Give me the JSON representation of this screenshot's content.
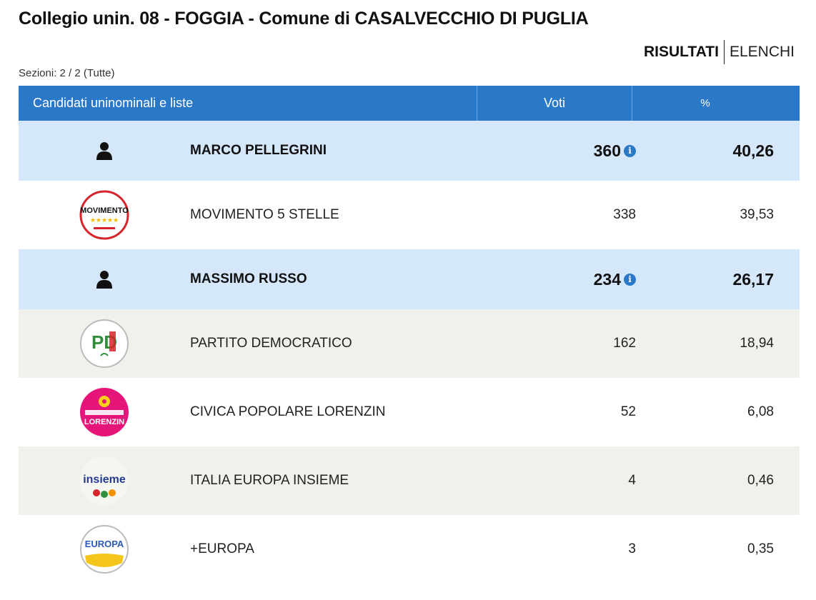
{
  "header": {
    "title": "Collegio unin. 08 - FOGGIA - Comune di CASALVECCHIO DI PUGLIA",
    "tabs": {
      "active": "RISULTATI",
      "other": "ELENCHI"
    },
    "sections": "Sezioni: 2 / 2 (Tutte)"
  },
  "table": {
    "columns": {
      "name": "Candidati uninominali e liste",
      "votes": "Voti",
      "percent": "%"
    },
    "info_icon": "i",
    "rows": [
      {
        "kind": "candidate",
        "icon": "person-icon",
        "name": "MARCO PELLEGRINI",
        "votes": "360",
        "percent": "40,26"
      },
      {
        "kind": "list",
        "icon": "movimento-5-stelle-logo",
        "logo_text": "MOVIMENTO",
        "name": "MOVIMENTO 5 STELLE",
        "votes": "338",
        "percent": "39,53"
      },
      {
        "kind": "candidate",
        "icon": "person-icon",
        "name": "MASSIMO RUSSO",
        "votes": "234",
        "percent": "26,17"
      },
      {
        "kind": "list",
        "icon": "partito-democratico-logo",
        "logo_text": "PD",
        "name": "PARTITO DEMOCRATICO",
        "votes": "162",
        "percent": "18,94"
      },
      {
        "kind": "list",
        "icon": "civica-popolare-logo",
        "logo_text": "LORENZIN",
        "name": "CIVICA POPOLARE LORENZIN",
        "votes": "52",
        "percent": "6,08"
      },
      {
        "kind": "list",
        "icon": "italia-europa-insieme-logo",
        "logo_text": "insieme",
        "name": "ITALIA EUROPA INSIEME",
        "votes": "4",
        "percent": "0,46"
      },
      {
        "kind": "list",
        "icon": "piu-europa-logo",
        "logo_text": "EUROPA",
        "name": "+EUROPA",
        "votes": "3",
        "percent": "0,35"
      }
    ]
  },
  "colors": {
    "header_blue": "#2a78c8",
    "candidate_row": "#d5e7fb",
    "alt_row": "#f1f1ec"
  }
}
